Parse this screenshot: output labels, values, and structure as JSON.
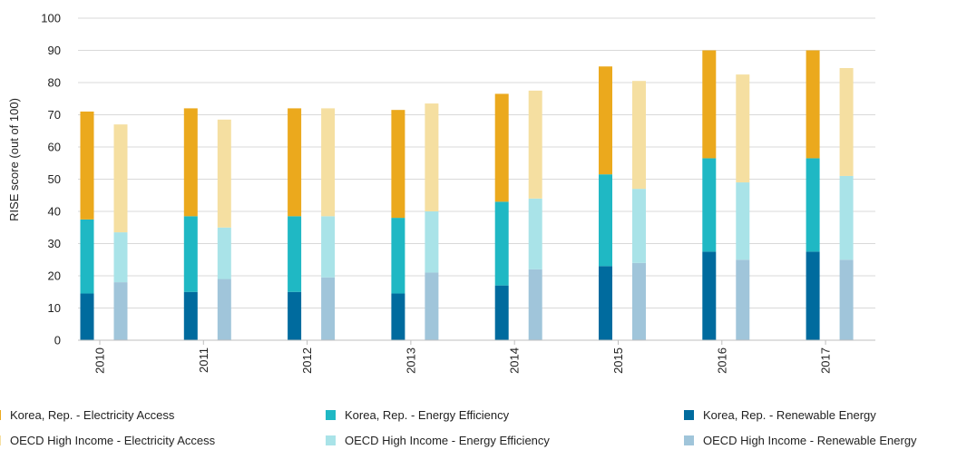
{
  "chart_data": {
    "type": "bar",
    "stacked": true,
    "title": "",
    "xlabel": "",
    "ylabel": "RISE score (out of 100)",
    "ylim": [
      0,
      100
    ],
    "yticks": [
      0,
      10,
      20,
      30,
      40,
      50,
      60,
      70,
      80,
      90,
      100
    ],
    "grid": true,
    "legend_position": "bottom",
    "categories": [
      "2010",
      "2011",
      "2012",
      "2013",
      "2014",
      "2015",
      "2016",
      "2017"
    ],
    "groups": [
      {
        "name": "Korea, Rep.",
        "series": [
          {
            "name": "Korea, Rep. - Renewable Energy",
            "color": "#006b9e",
            "values": [
              14.5,
              15.0,
              15.0,
              14.5,
              17.0,
              23.0,
              27.5,
              27.5
            ]
          },
          {
            "name": "Korea, Rep. -  Energy Efficiency",
            "color": "#1fb8c4",
            "values": [
              23.0,
              23.5,
              23.5,
              23.5,
              26.0,
              28.5,
              29.0,
              29.0
            ]
          },
          {
            "name": "Korea, Rep. - Electricity Access",
            "color": "#eba91d",
            "values": [
              33.5,
              33.5,
              33.5,
              33.5,
              33.5,
              33.5,
              33.5,
              33.5
            ]
          }
        ]
      },
      {
        "name": "OECD High Income",
        "series": [
          {
            "name": "OECD High Income - Renewable Energy",
            "color": "#a0c5da",
            "values": [
              18.0,
              19.0,
              19.5,
              21.0,
              22.0,
              24.0,
              25.0,
              25.0
            ]
          },
          {
            "name": "OECD High Income - Energy Efficiency",
            "color": "#a9e3e8",
            "values": [
              15.5,
              16.0,
              19.0,
              19.0,
              22.0,
              23.0,
              24.0,
              26.0
            ]
          },
          {
            "name": "OECD High Income - Electricity Access",
            "color": "#f5dfa1",
            "values": [
              33.5,
              33.5,
              33.5,
              33.5,
              33.5,
              33.5,
              33.5,
              33.5
            ]
          }
        ]
      }
    ]
  },
  "legend": {
    "items": [
      {
        "label": "Korea, Rep. - Electricity Access",
        "color": "#eba91d"
      },
      {
        "label": "Korea, Rep. -  Energy Efficiency",
        "color": "#1fb8c4"
      },
      {
        "label": "Korea, Rep. - Renewable Energy",
        "color": "#006b9e"
      },
      {
        "label": "OECD High Income - Electricity Access",
        "color": "#f5dfa1"
      },
      {
        "label": "OECD High Income - Energy Efficiency",
        "color": "#a9e3e8"
      },
      {
        "label": "OECD High Income - Renewable Energy",
        "color": "#a0c5da"
      }
    ]
  }
}
